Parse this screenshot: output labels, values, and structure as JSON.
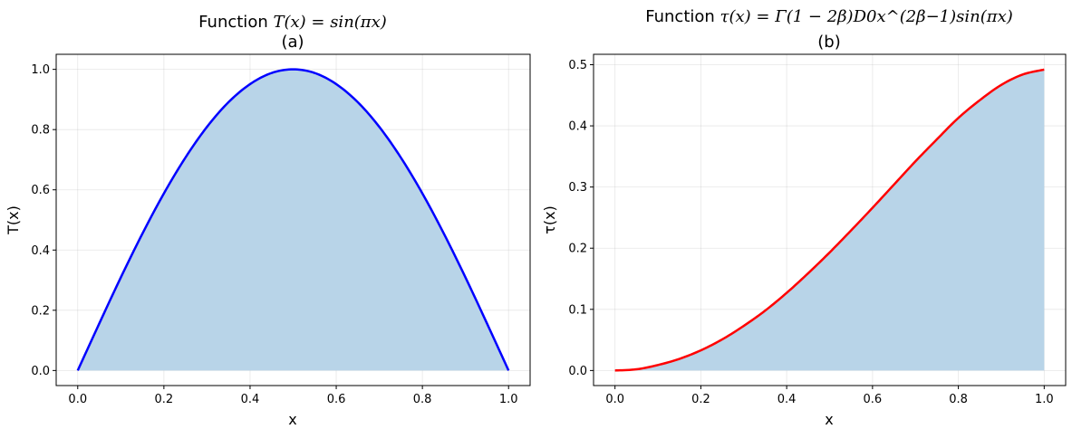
{
  "chart_data": [
    {
      "type": "area",
      "title_prefix": "Function ",
      "title_formula": "T(x) = sin(πx)",
      "subtitle": "(a)",
      "xlabel": "x",
      "ylabel": "T(x)",
      "xlim": [
        -0.05,
        1.05
      ],
      "ylim": [
        -0.05,
        1.05
      ],
      "xticks": [
        "0.0",
        "0.2",
        "0.4",
        "0.6",
        "0.8",
        "1.0"
      ],
      "yticks": [
        "0.0",
        "0.2",
        "0.4",
        "0.6",
        "0.8",
        "1.0"
      ],
      "grid": true,
      "line_color": "#0000ff",
      "fill_color": "#b8d4e8",
      "series": [
        {
          "x": [
            0.0,
            0.05,
            0.1,
            0.15,
            0.2,
            0.25,
            0.3,
            0.35,
            0.4,
            0.45,
            0.5,
            0.55,
            0.6,
            0.65,
            0.7,
            0.75,
            0.8,
            0.85,
            0.9,
            0.95,
            1.0
          ],
          "y": [
            0.0,
            0.156,
            0.309,
            0.454,
            0.588,
            0.707,
            0.809,
            0.891,
            0.951,
            0.988,
            1.0,
            0.988,
            0.951,
            0.891,
            0.809,
            0.707,
            0.588,
            0.454,
            0.309,
            0.156,
            0.0
          ]
        }
      ]
    },
    {
      "type": "area",
      "title_prefix": "Function ",
      "title_formula": "τ(x) = Γ(1 − 2β)D0x^(2β−1)sin(πx)",
      "subtitle": "(b)",
      "xlabel": "x",
      "ylabel": "τ(x)",
      "xlim": [
        -0.05,
        1.05
      ],
      "ylim": [
        -0.0246,
        0.517
      ],
      "xticks": [
        "0.0",
        "0.2",
        "0.4",
        "0.6",
        "0.8",
        "1.0"
      ],
      "yticks": [
        "0.0",
        "0.1",
        "0.2",
        "0.3",
        "0.4",
        "0.5"
      ],
      "grid": true,
      "line_color": "#ff0000",
      "fill_color": "#b8d4e8",
      "series": [
        {
          "x": [
            0.0,
            0.05,
            0.1,
            0.15,
            0.2,
            0.25,
            0.3,
            0.35,
            0.4,
            0.45,
            0.5,
            0.55,
            0.6,
            0.65,
            0.7,
            0.75,
            0.8,
            0.85,
            0.9,
            0.95,
            1.0
          ],
          "y": [
            0.0,
            0.002,
            0.009,
            0.019,
            0.033,
            0.051,
            0.073,
            0.098,
            0.127,
            0.159,
            0.193,
            0.229,
            0.266,
            0.304,
            0.342,
            0.378,
            0.413,
            0.442,
            0.467,
            0.484,
            0.492
          ]
        }
      ]
    }
  ]
}
